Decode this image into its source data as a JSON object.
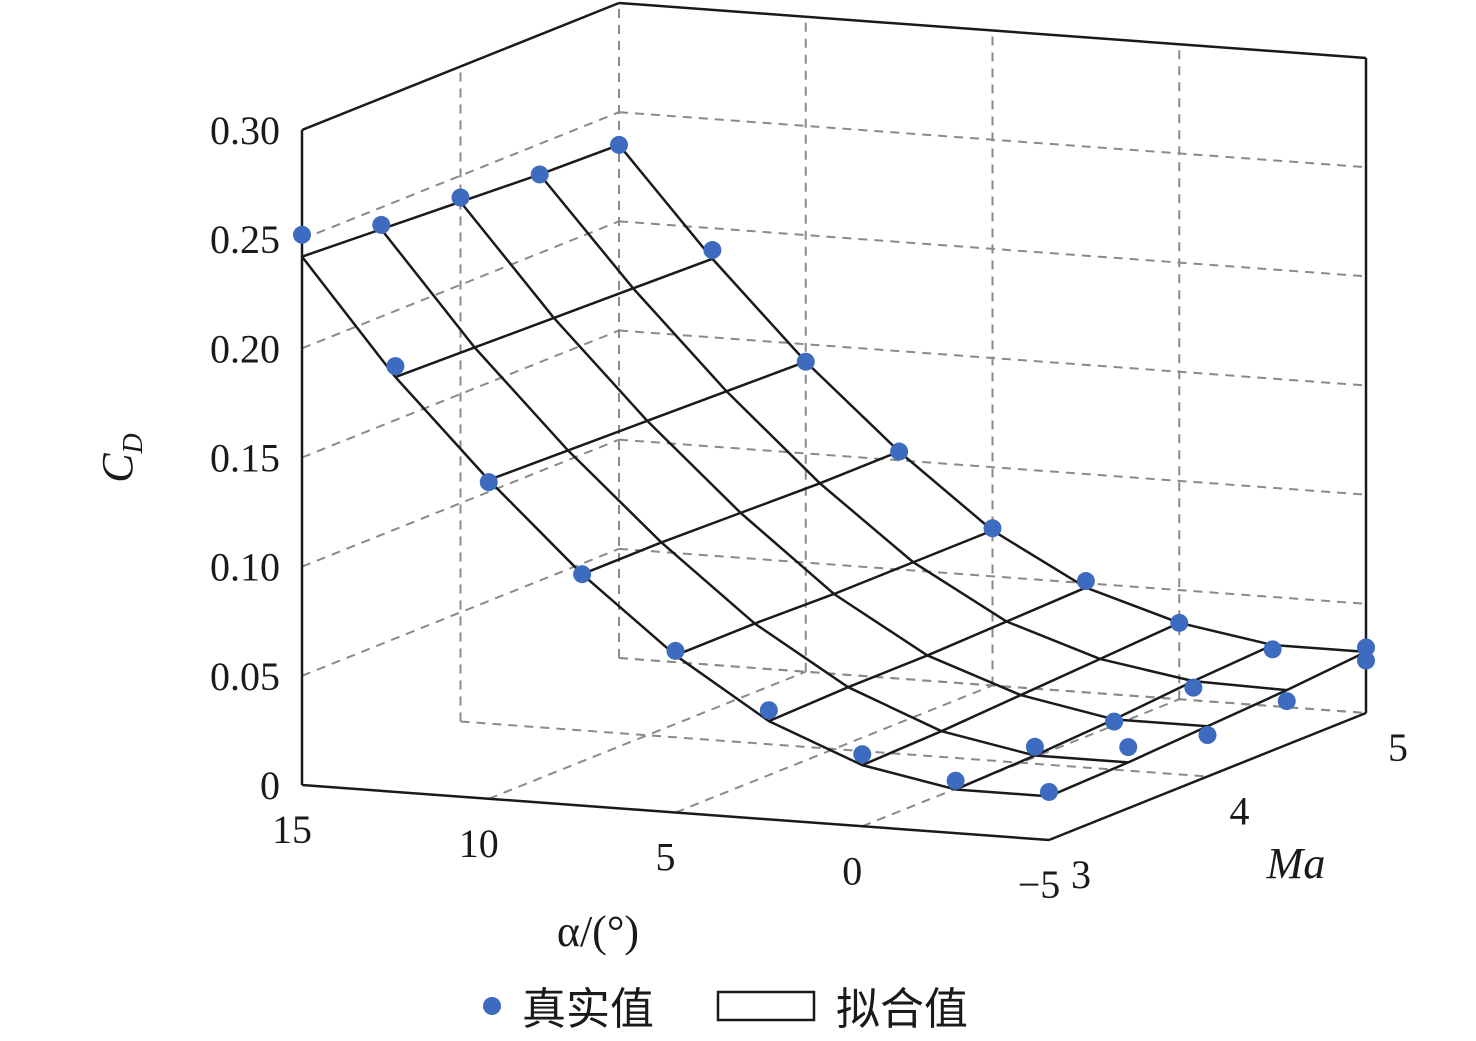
{
  "chart_data": {
    "type": "surface3d",
    "title": "",
    "x_axis": {
      "label": "α/(°)",
      "ticks": [
        15,
        10,
        5,
        0,
        -5
      ],
      "range": [
        -5,
        15
      ]
    },
    "y_axis": {
      "label": "Ma",
      "ticks": [
        3,
        4,
        5
      ],
      "range": [
        3,
        5
      ]
    },
    "z_axis": {
      "label": "C_D",
      "label_main": "C",
      "label_sub": "D",
      "ticks": [
        "0",
        "0.05",
        "0.10",
        "0.15",
        "0.20",
        "0.25",
        "0.30"
      ],
      "range": [
        0,
        0.3
      ]
    },
    "legend": {
      "position": "bottom",
      "items": [
        {
          "name": "真实值",
          "marker": "dot"
        },
        {
          "name": "拟合值",
          "marker": "box"
        }
      ]
    },
    "series": [
      {
        "name": "真实值",
        "kind": "scatter",
        "points": [
          {
            "alpha": 15,
            "ma": 3,
            "cd": 0.252
          },
          {
            "alpha": 15,
            "ma": 3.5,
            "cd": 0.242
          },
          {
            "alpha": 15,
            "ma": 4,
            "cd": 0.24
          },
          {
            "alpha": 15,
            "ma": 4.5,
            "cd": 0.236
          },
          {
            "alpha": 15,
            "ma": 5,
            "cd": 0.235
          },
          {
            "alpha": 12.5,
            "ma": 3,
            "cd": 0.195
          },
          {
            "alpha": 12.5,
            "ma": 5,
            "cd": 0.19
          },
          {
            "alpha": 10,
            "ma": 3,
            "cd": 0.145
          },
          {
            "alpha": 10,
            "ma": 5,
            "cd": 0.142
          },
          {
            "alpha": 7.5,
            "ma": 3,
            "cd": 0.106
          },
          {
            "alpha": 7.5,
            "ma": 5,
            "cd": 0.104
          },
          {
            "alpha": 5,
            "ma": 3,
            "cd": 0.074
          },
          {
            "alpha": 5,
            "ma": 5,
            "cd": 0.072
          },
          {
            "alpha": 2.5,
            "ma": 3,
            "cd": 0.05
          },
          {
            "alpha": 2.5,
            "ma": 5,
            "cd": 0.051
          },
          {
            "alpha": 0,
            "ma": 3,
            "cd": 0.033
          },
          {
            "alpha": 0,
            "ma": 5,
            "cd": 0.035
          },
          {
            "alpha": -2.5,
            "ma": 3,
            "cd": 0.024
          },
          {
            "alpha": -2.5,
            "ma": 5,
            "cd": 0.026
          },
          {
            "alpha": -5,
            "ma": 3,
            "cd": 0.022
          },
          {
            "alpha": -5,
            "ma": 5,
            "cd": 0.024
          },
          {
            "alpha": -5,
            "ma": 4,
            "cd": 0.019
          },
          {
            "alpha": -2.5,
            "ma": 4,
            "cd": 0.022
          },
          {
            "alpha": -5,
            "ma": 4.5,
            "cd": 0.02
          },
          {
            "alpha": -2.5,
            "ma": 4.5,
            "cd": 0.023
          },
          {
            "alpha": -5,
            "ma": 3.5,
            "cd": 0.028
          },
          {
            "alpha": -2.5,
            "ma": 3.5,
            "cd": 0.025
          },
          {
            "alpha": -5,
            "ma": 5,
            "cd": 0.03
          }
        ]
      },
      {
        "name": "拟合值",
        "kind": "mesh",
        "alpha_grid": [
          15,
          12.5,
          10,
          7.5,
          5,
          2.5,
          0,
          -2.5,
          -5
        ],
        "ma_grid": [
          3,
          3.5,
          4,
          4.5,
          5
        ],
        "cd": [
          [
            0.242,
            0.24,
            0.238,
            0.236,
            0.235
          ],
          [
            0.19,
            0.189,
            0.188,
            0.187,
            0.186
          ],
          [
            0.146,
            0.145,
            0.144,
            0.143,
            0.142
          ],
          [
            0.106,
            0.106,
            0.105,
            0.104,
            0.104
          ],
          [
            0.072,
            0.072,
            0.071,
            0.071,
            0.071
          ],
          [
            0.045,
            0.046,
            0.046,
            0.047,
            0.048
          ],
          [
            0.028,
            0.029,
            0.031,
            0.033,
            0.035
          ],
          [
            0.02,
            0.021,
            0.023,
            0.026,
            0.028
          ],
          [
            0.02,
            0.021,
            0.023,
            0.025,
            0.028
          ]
        ]
      }
    ],
    "grid": true
  }
}
